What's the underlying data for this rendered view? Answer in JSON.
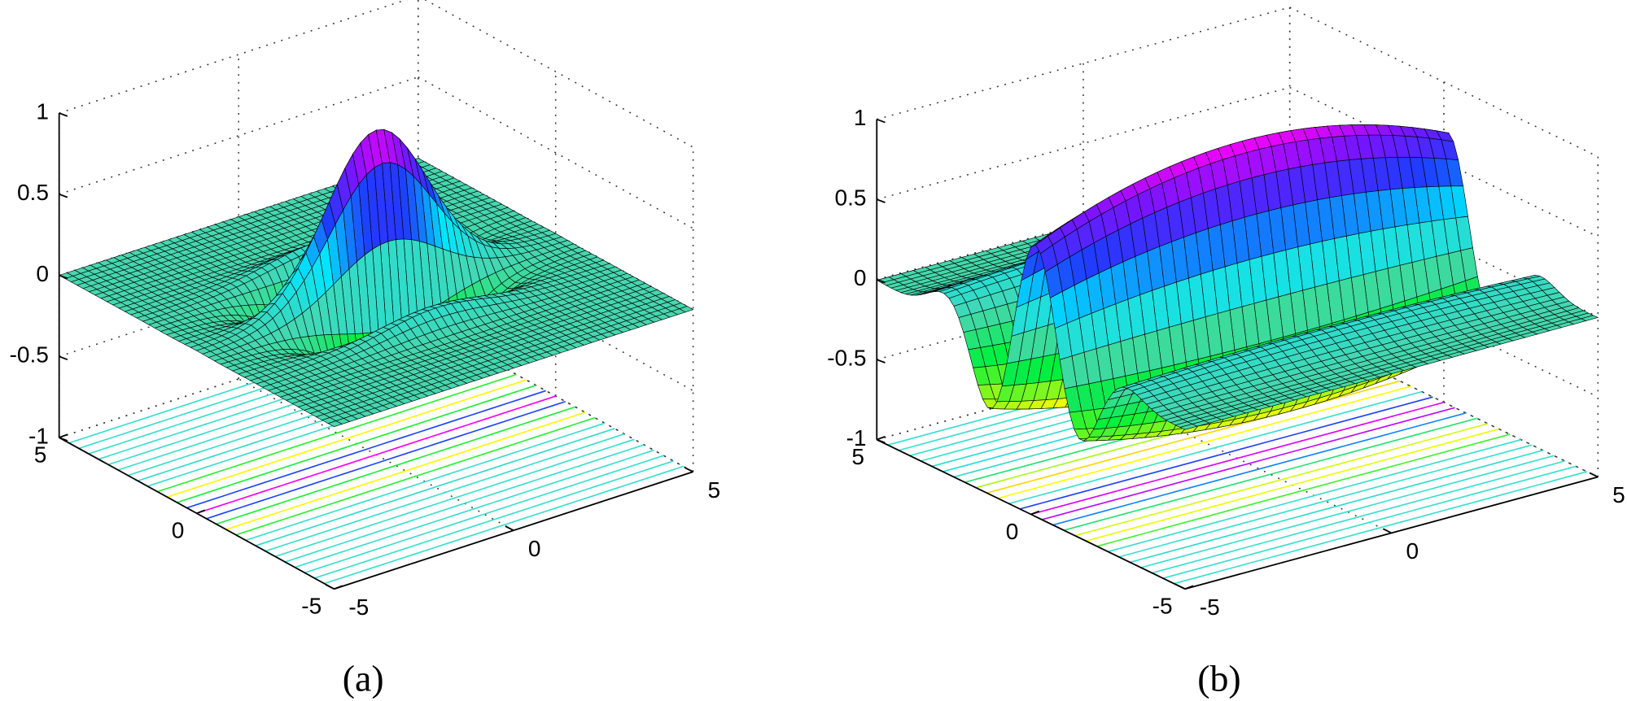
{
  "chart_data": [
    {
      "type": "surface",
      "caption": "(a)",
      "xlim": [
        -5,
        5
      ],
      "xticks": [
        -5,
        0,
        5
      ],
      "ylim": [
        -5,
        5
      ],
      "yticks": [
        -5,
        0,
        5
      ],
      "zlim": [
        -1,
        1
      ],
      "zticks": [
        -1,
        -0.5,
        0,
        0.5,
        1
      ],
      "grid": true
    },
    {
      "type": "surface",
      "caption": "(b)",
      "xlim": [
        -5,
        5
      ],
      "xticks": [
        -5,
        0,
        5
      ],
      "ylim": [
        -5,
        5
      ],
      "yticks": [
        -5,
        0,
        5
      ],
      "zlim": [
        -1,
        1
      ],
      "zticks": [
        -1,
        -0.5,
        0,
        0.5,
        1
      ],
      "grid": true
    }
  ]
}
